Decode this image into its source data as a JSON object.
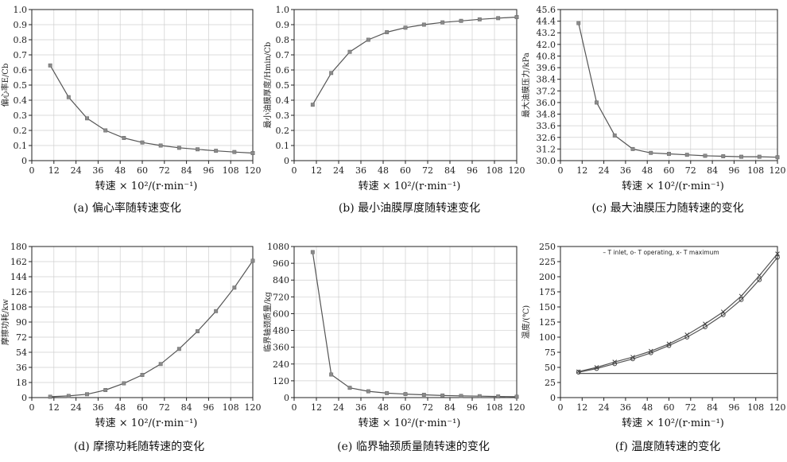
{
  "chart_data": [
    {
      "type": "line",
      "caption": "(a)  偏心率随转速变化",
      "ylabel": "偏心率E/Cb",
      "xlabel": "转速 × 10²/(r·min⁻¹)",
      "xlim": [
        0,
        120
      ],
      "ylim": [
        0,
        1.0
      ],
      "xticks": [
        0,
        12,
        24,
        36,
        48,
        60,
        72,
        84,
        96,
        108,
        120
      ],
      "yticks": [
        "0",
        "0.1",
        "0.2",
        "0.3",
        "0.4",
        "0.5",
        "0.6",
        "0.7",
        "0.8",
        "0.9",
        "1.0"
      ],
      "grid": true,
      "series": [
        {
          "x": [
            10,
            20,
            30,
            40,
            50,
            60,
            70,
            80,
            90,
            100,
            110,
            120
          ],
          "y": [
            0.63,
            0.42,
            0.28,
            0.2,
            0.15,
            0.12,
            0.1,
            0.085,
            0.075,
            0.065,
            0.057,
            0.05
          ]
        }
      ]
    },
    {
      "type": "line",
      "caption": "(b)  最小油膜厚度随转速变化",
      "ylabel": "最小油膜厚度/Hmin/Cb",
      "xlabel": "转速 × 10²/(r·min⁻¹)",
      "xlim": [
        0,
        120
      ],
      "ylim": [
        0,
        1.0
      ],
      "xticks": [
        0,
        12,
        24,
        36,
        48,
        60,
        72,
        84,
        96,
        108,
        120
      ],
      "yticks": [
        "0",
        "0.1",
        "0.2",
        "0.3",
        "0.4",
        "0.5",
        "0.6",
        "0.7",
        "0.8",
        "0.9",
        "1.0"
      ],
      "grid": true,
      "series": [
        {
          "x": [
            10,
            20,
            30,
            40,
            50,
            60,
            70,
            80,
            90,
            100,
            110,
            120
          ],
          "y": [
            0.37,
            0.58,
            0.72,
            0.8,
            0.85,
            0.88,
            0.9,
            0.915,
            0.925,
            0.935,
            0.943,
            0.95
          ]
        }
      ]
    },
    {
      "type": "line",
      "caption": "(c)  最大油膜压力随转速的变化",
      "ylabel": "最大油膜压力/kPa",
      "xlabel": "转速 × 10²/(r·min⁻¹)",
      "xlim": [
        0,
        120
      ],
      "ylim": [
        30.0,
        45.6
      ],
      "xticks": [
        0,
        12,
        24,
        36,
        48,
        60,
        72,
        84,
        96,
        108,
        120
      ],
      "yticks": [
        "30.0",
        "31.2",
        "32.6",
        "33.6",
        "34.8",
        "36.0",
        "37.2",
        "38.4",
        "39.6",
        "40.8",
        "42.0",
        "43.2",
        "44.4",
        "45.6"
      ],
      "grid": true,
      "series": [
        {
          "x": [
            10,
            20,
            30,
            40,
            50,
            60,
            70,
            80,
            90,
            100,
            110,
            120
          ],
          "y": [
            44.2,
            36.0,
            32.6,
            31.2,
            30.8,
            30.7,
            30.6,
            30.5,
            30.45,
            30.4,
            30.4,
            30.35
          ]
        }
      ]
    },
    {
      "type": "line",
      "caption": "(d)  摩擦功耗随转速的变化",
      "ylabel": "摩擦功耗/kw",
      "xlabel": "转速 × 10²/(r·min⁻¹)",
      "xlim": [
        0,
        120
      ],
      "ylim": [
        0,
        180
      ],
      "xticks": [
        0,
        12,
        24,
        36,
        48,
        60,
        72,
        84,
        96,
        108,
        120
      ],
      "yticks": [
        "0",
        "18",
        "36",
        "54",
        "72",
        "90",
        "108",
        "126",
        "144",
        "162",
        "180"
      ],
      "grid": true,
      "series": [
        {
          "x": [
            10,
            20,
            30,
            40,
            50,
            60,
            70,
            80,
            90,
            100,
            110,
            120
          ],
          "y": [
            1,
            2,
            4,
            9,
            17,
            27,
            40,
            58,
            79,
            103,
            131,
            163
          ]
        }
      ]
    },
    {
      "type": "line",
      "caption": "(e)  临界轴颈质量随转速的变化",
      "ylabel": "临界轴颈质量/kg",
      "xlabel": "转速 × 10²/(r·min⁻¹)",
      "xlim": [
        0,
        120
      ],
      "ylim": [
        0,
        1080
      ],
      "xticks": [
        0,
        12,
        24,
        36,
        48,
        60,
        72,
        84,
        96,
        108,
        120
      ],
      "yticks": [
        "0",
        "120",
        "240",
        "360",
        "480",
        "600",
        "720",
        "840",
        "960",
        "1080"
      ],
      "grid": true,
      "series": [
        {
          "x": [
            10,
            20,
            30,
            40,
            50,
            60,
            70,
            80,
            90,
            100,
            110,
            120
          ],
          "y": [
            1040,
            165,
            70,
            45,
            32,
            25,
            20,
            15,
            12,
            10,
            8,
            6
          ]
        }
      ]
    },
    {
      "type": "line",
      "caption": "(f)  温度随转速的变化",
      "ylabel": "温度/(℃)",
      "xlabel": "转速 × 10²/(r·min⁻¹)",
      "xlim": [
        0,
        120
      ],
      "ylim": [
        0,
        250
      ],
      "xticks": [
        0,
        12,
        24,
        36,
        48,
        60,
        72,
        84,
        96,
        108,
        120
      ],
      "yticks": [
        "0",
        "25",
        "50",
        "75",
        "100",
        "125",
        "150",
        "175",
        "200",
        "225",
        "250"
      ],
      "grid": false,
      "legend_text": "– T inlet, o- T operating, x- T maximum",
      "legend_position": "top",
      "series": [
        {
          "name": "T inlet",
          "marker": "none",
          "x": [
            10,
            120
          ],
          "y": [
            40,
            40
          ]
        },
        {
          "name": "T operating",
          "marker": "o",
          "x": [
            10,
            20,
            30,
            40,
            50,
            60,
            70,
            80,
            90,
            100,
            110,
            120
          ],
          "y": [
            42,
            48,
            56,
            64,
            74,
            86,
            100,
            117,
            137,
            162,
            195,
            232
          ]
        },
        {
          "name": "T maximum",
          "marker": "x",
          "x": [
            10,
            20,
            30,
            40,
            50,
            60,
            70,
            80,
            90,
            100,
            110,
            120
          ],
          "y": [
            43,
            50,
            59,
            67,
            77,
            89,
            104,
            122,
            142,
            168,
            202,
            238
          ]
        }
      ]
    }
  ]
}
